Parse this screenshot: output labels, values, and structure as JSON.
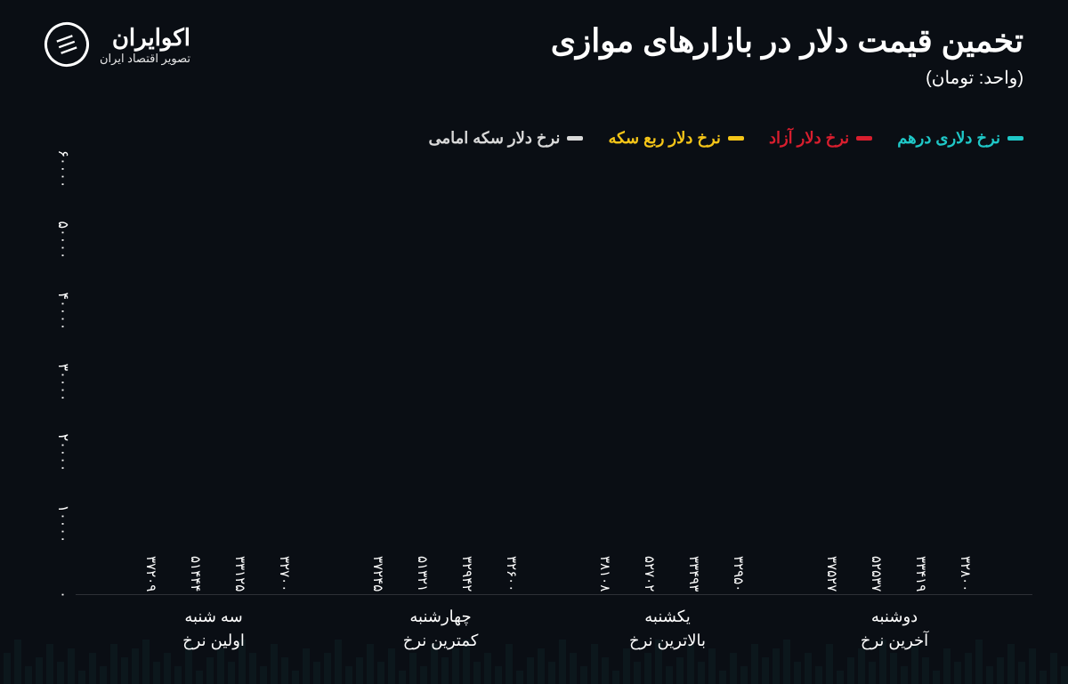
{
  "title": "تخمین قیمت دلار در بازارهای موازی",
  "subtitle": "(واحد: تومان)",
  "logo": {
    "main": "اکوایران",
    "sub": "تصویر اقتصاد ایران"
  },
  "chart": {
    "type": "bar",
    "ylim": [
      0,
      60000
    ],
    "ytick_step": 10000,
    "yticks": [
      "۰",
      "۱۰۰۰۰",
      "۲۰۰۰۰",
      "۳۰۰۰۰",
      "۴۰۰۰۰",
      "۵۰۰۰۰",
      "۶۰۰۰۰"
    ],
    "background_color": "#0a0e14",
    "text_color": "#ffffff",
    "series": [
      {
        "name": "نرخ دلاری درهم",
        "color": "#1fc8c8"
      },
      {
        "name": "نرخ دلار آزاد",
        "color": "#d91e2e"
      },
      {
        "name": "نرخ دلار ربع سکه",
        "color": "#f5c518"
      },
      {
        "name": "نرخ دلار سکه امامی",
        "color": "#d9d9d9"
      }
    ],
    "categories": [
      {
        "label_line1": "دوشنبه",
        "label_line2": "آخرین نرخ",
        "bars": [
          {
            "series": 1,
            "value": 32800,
            "label": "۳۲۸۰۰"
          },
          {
            "series": 0,
            "value": 33419,
            "label": "۳۳۴۱۹"
          },
          {
            "series": 2,
            "value": 52537,
            "label": "۵۲۵۳۷"
          },
          {
            "series": 3,
            "value": 37527,
            "label": "۳۷۵۲۷"
          }
        ]
      },
      {
        "label_line1": "یکشنبه",
        "label_line2": "بالاترین نرخ",
        "bars": [
          {
            "series": 1,
            "value": 32950,
            "label": "۳۲۹۵۰"
          },
          {
            "series": 0,
            "value": 33493,
            "label": "۳۳۴۹۳"
          },
          {
            "series": 2,
            "value": 52702,
            "label": "۵۲۷۰۲"
          },
          {
            "series": 3,
            "value": 38108,
            "label": "۳۸۱۰۸"
          }
        ]
      },
      {
        "label_line1": "چهارشنبه",
        "label_line2": "کمترین نرخ",
        "bars": [
          {
            "series": 1,
            "value": 32600,
            "label": "۳۲۶۰۰"
          },
          {
            "series": 0,
            "value": 32942,
            "label": "۳۲۹۴۲"
          },
          {
            "series": 2,
            "value": 51321,
            "label": "۵۱۳۲۱"
          },
          {
            "series": 3,
            "value": 37245,
            "label": "۳۷۲۴۵"
          }
        ]
      },
      {
        "label_line1": "سه شنبه",
        "label_line2": "اولین نرخ",
        "bars": [
          {
            "series": 1,
            "value": 32700,
            "label": "۳۲۷۰۰"
          },
          {
            "series": 0,
            "value": 33125,
            "label": "۳۳۱۲۵"
          },
          {
            "series": 2,
            "value": 51444,
            "label": "۵۱۴۴۴"
          },
          {
            "series": 3,
            "value": 37209,
            "label": "۳۷۲۰۹"
          }
        ]
      }
    ]
  }
}
